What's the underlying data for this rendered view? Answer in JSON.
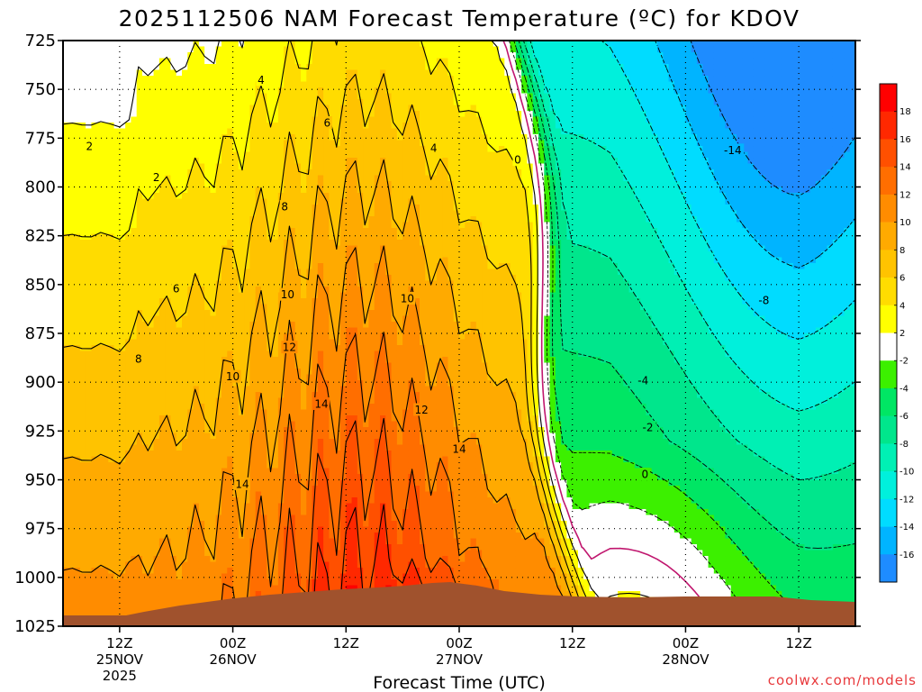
{
  "chart_data": {
    "type": "heatmap",
    "title": "2025112506 NAM Forecast Temperature (ºC) for KDOV",
    "xlabel": "Forecast Time (UTC)",
    "ylabel": "",
    "credit": "coolwx.com/models",
    "y_axis": {
      "scale": "pressure_hPa",
      "ylim": [
        1025,
        725
      ],
      "ticks": [
        "725",
        "750",
        "775",
        "800",
        "825",
        "850",
        "875",
        "900",
        "925",
        "950",
        "975",
        "1000",
        "1025"
      ]
    },
    "x_axis": {
      "xlim_hours": [
        0,
        84
      ],
      "ticks": [
        {
          "hour": 6,
          "label": "12Z",
          "date": "25NOV",
          "year": "2025"
        },
        {
          "hour": 18,
          "label": "00Z",
          "date": "26NOV"
        },
        {
          "hour": 30,
          "label": "12Z"
        },
        {
          "hour": 42,
          "label": "00Z",
          "date": "27NOV"
        },
        {
          "hour": 54,
          "label": "12Z"
        },
        {
          "hour": 66,
          "label": "00Z",
          "date": "28NOV"
        },
        {
          "hour": 78,
          "label": "12Z"
        }
      ]
    },
    "grid": true,
    "colorbar": {
      "position": "right",
      "units": "ºC",
      "bins": [
        {
          "lo": -18,
          "hi": -16,
          "color": "#1e8cff"
        },
        {
          "lo": -16,
          "hi": -14,
          "color": "#00b4ff"
        },
        {
          "lo": -14,
          "hi": -12,
          "color": "#00dcff"
        },
        {
          "lo": -12,
          "hi": -10,
          "color": "#00f0dc"
        },
        {
          "lo": -10,
          "hi": -8,
          "color": "#00f0b4"
        },
        {
          "lo": -8,
          "hi": -6,
          "color": "#00e68c"
        },
        {
          "lo": -6,
          "hi": -4,
          "color": "#00e664"
        },
        {
          "lo": -4,
          "hi": -2,
          "color": "#3cf000"
        },
        {
          "lo": -2,
          "hi": 2,
          "color": "#ffffff"
        },
        {
          "lo": 2,
          "hi": 4,
          "color": "#ffff00"
        },
        {
          "lo": 4,
          "hi": 6,
          "color": "#ffdc00"
        },
        {
          "lo": 6,
          "hi": 8,
          "color": "#ffc300"
        },
        {
          "lo": 8,
          "hi": 10,
          "color": "#ffaa00"
        },
        {
          "lo": 10,
          "hi": 12,
          "color": "#ff8c00"
        },
        {
          "lo": 12,
          "hi": 14,
          "color": "#ff6e00"
        },
        {
          "lo": 14,
          "hi": 16,
          "color": "#ff5000"
        },
        {
          "lo": 16,
          "hi": 18,
          "color": "#ff2800"
        },
        {
          "lo": 18,
          "hi": 20,
          "color": "#ff0000"
        }
      ],
      "tick_labels": [
        "-16",
        "-14",
        "-12",
        "-10",
        "-8",
        "-6",
        "-4",
        "-2",
        "2",
        "4",
        "6",
        "8",
        "10",
        "12",
        "14",
        "16",
        "18"
      ]
    },
    "contour_labels": [
      {
        "text": "2",
        "hour": 2.8,
        "p": 779
      },
      {
        "text": "2",
        "hour": 9.9,
        "p": 795
      },
      {
        "text": "4",
        "hour": 21.0,
        "p": 745
      },
      {
        "text": "6",
        "hour": 28.0,
        "p": 767
      },
      {
        "text": "4",
        "hour": 39.3,
        "p": 780
      },
      {
        "text": "0",
        "hour": 48.2,
        "p": 786
      },
      {
        "text": "8",
        "hour": 23.5,
        "p": 810
      },
      {
        "text": "6",
        "hour": 12.0,
        "p": 852
      },
      {
        "text": "10",
        "hour": 23.8,
        "p": 855
      },
      {
        "text": "10",
        "hour": 36.5,
        "p": 857
      },
      {
        "text": "8",
        "hour": 8.0,
        "p": 888
      },
      {
        "text": "12",
        "hour": 24.0,
        "p": 882
      },
      {
        "text": "10",
        "hour": 18.0,
        "p": 897
      },
      {
        "text": "12",
        "hour": 38.0,
        "p": 914
      },
      {
        "text": "14",
        "hour": 27.4,
        "p": 911
      },
      {
        "text": "14",
        "hour": 42.0,
        "p": 934
      },
      {
        "text": "14",
        "hour": 19.0,
        "p": 952
      },
      {
        "text": "-14",
        "hour": 71.0,
        "p": 781
      },
      {
        "text": "-8",
        "hour": 74.3,
        "p": 858
      },
      {
        "text": "-4",
        "hour": 61.5,
        "p": 899
      },
      {
        "text": "-2",
        "hour": 62.0,
        "p": 923
      },
      {
        "text": "0",
        "hour": 61.7,
        "p": 947
      }
    ]
  }
}
